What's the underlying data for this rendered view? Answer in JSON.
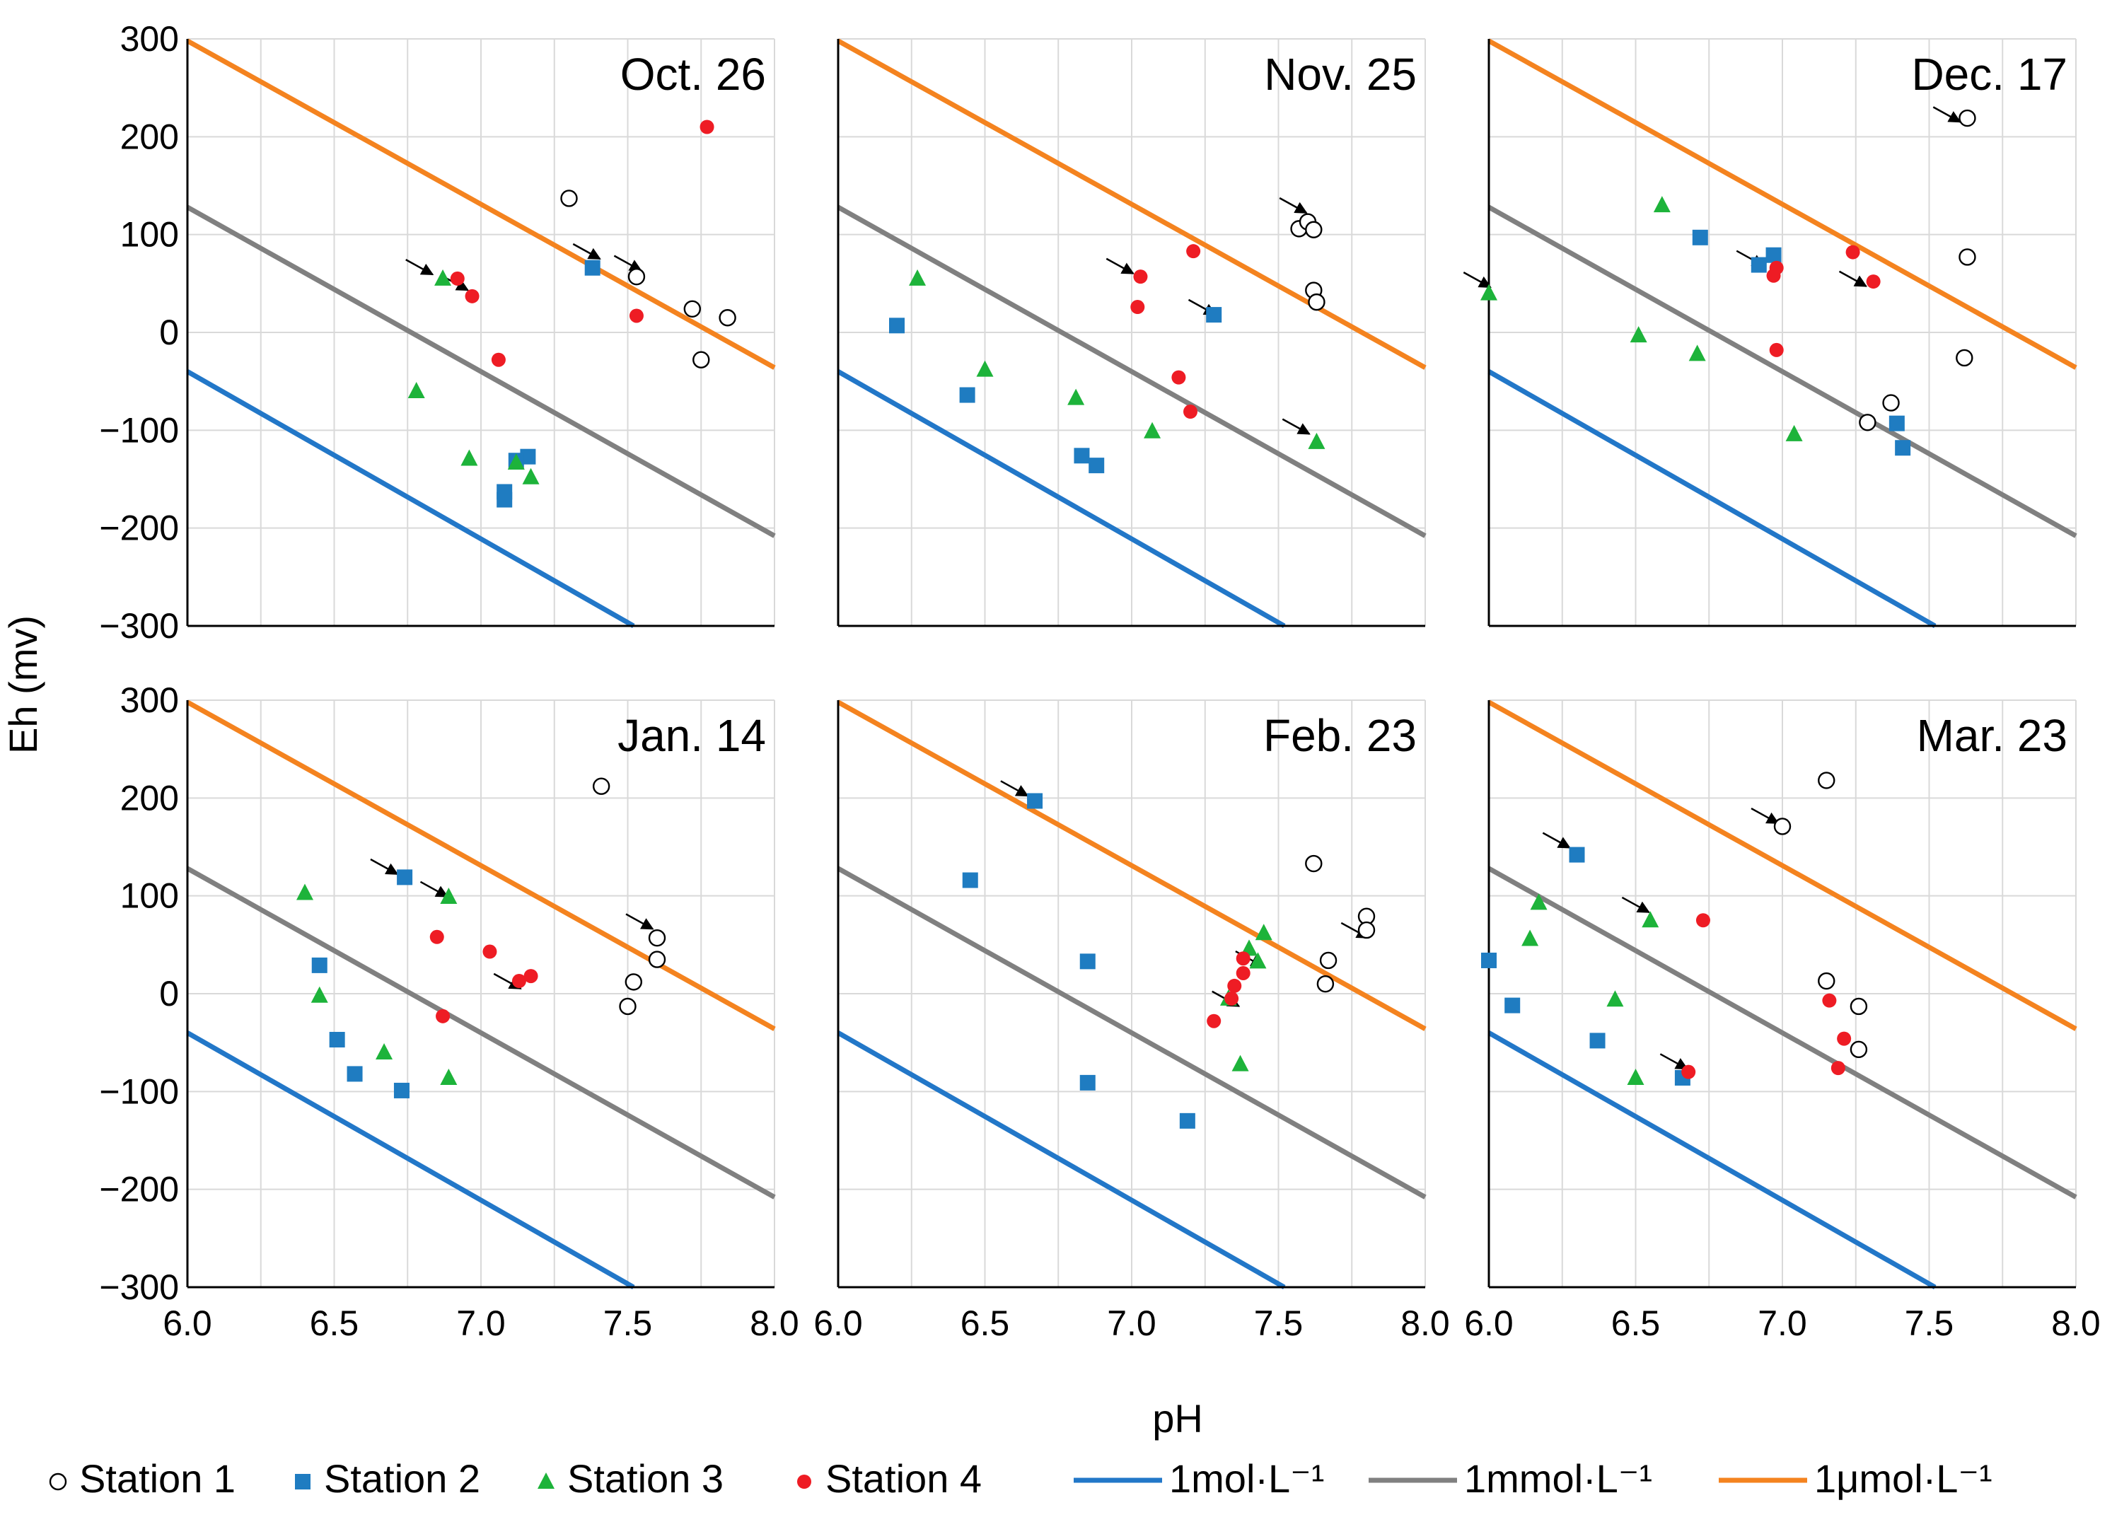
{
  "chart_data": {
    "type": "scatter",
    "title": "",
    "xlabel": "pH",
    "ylabel": "Eh (mv)",
    "xlim": [
      6.0,
      8.0
    ],
    "ylim": [
      -300,
      300
    ],
    "xticks": [
      "6.0",
      "6.5",
      "7.0",
      "7.5",
      "8.0"
    ],
    "yticks": [
      "300",
      "200",
      "100",
      "0",
      "−100",
      "−200",
      "−300"
    ],
    "grid": true,
    "colors": {
      "Station 1": "#ffffff",
      "Station 2": "#1f7cc1",
      "Station 3": "#1db33a",
      "Station 4": "#ee1c24",
      "1mol·L⁻¹": "#2277c8",
      "1mmol·L⁻¹": "#808080",
      "1μmol·L⁻¹": "#f4831f"
    },
    "legend": {
      "position": "bottom",
      "markers": [
        "Station 1",
        "Station 2",
        "Station 3",
        "Station 4"
      ],
      "lines": [
        "1mol·L⁻¹",
        "1mmol·L⁻¹",
        "1μmol·L⁻¹"
      ]
    },
    "reference_lines": [
      {
        "name": "1mol·L⁻¹",
        "x": [
          6.0,
          7.52
        ],
        "y": [
          -40,
          -300
        ]
      },
      {
        "name": "1mmol·L⁻¹",
        "x": [
          6.0,
          8.0
        ],
        "y": [
          128,
          -208
        ]
      },
      {
        "name": "1μmol·L⁻¹",
        "x": [
          6.0,
          8.0
        ],
        "y": [
          298,
          -36
        ]
      }
    ],
    "panels": [
      {
        "title": "Oct. 26",
        "series": [
          {
            "name": "Station 1",
            "x": [
              7.3,
              7.53,
              7.72,
              7.84,
              7.75
            ],
            "y": [
              137,
              57,
              24,
              15,
              -28
            ]
          },
          {
            "name": "Station 2",
            "x": [
              7.38,
              7.16,
              7.12,
              7.08,
              7.08
            ],
            "y": [
              66,
              -127,
              -131,
              -163,
              -171
            ]
          },
          {
            "name": "Station 3",
            "x": [
              6.87,
              6.78,
              6.96,
              7.12,
              7.17
            ],
            "y": [
              55,
              -60,
              -129,
              -133,
              -148
            ]
          },
          {
            "name": "Station 4",
            "x": [
              7.77,
              6.92,
              6.97,
              7.53,
              7.06
            ],
            "y": [
              210,
              55,
              37,
              17,
              -28
            ]
          }
        ],
        "arrows": [
          [
            6.85,
            57
          ],
          [
            6.97,
            41
          ],
          [
            7.42,
            73
          ],
          [
            7.56,
            61
          ]
        ]
      },
      {
        "title": "Nov. 25",
        "series": [
          {
            "name": "Station 1",
            "x": [
              7.57,
              7.6,
              7.62,
              7.62,
              7.63
            ],
            "y": [
              106,
              113,
              105,
              43,
              31
            ]
          },
          {
            "name": "Station 2",
            "x": [
              6.2,
              6.44,
              6.83,
              6.88,
              7.28
            ],
            "y": [
              7,
              -64,
              -126,
              -136,
              18
            ]
          },
          {
            "name": "Station 3",
            "x": [
              6.27,
              6.5,
              6.81,
              7.07,
              7.63
            ],
            "y": [
              55,
              -38,
              -67,
              -101,
              -112
            ]
          },
          {
            "name": "Station 4",
            "x": [
              7.21,
              7.03,
              7.02,
              7.16,
              7.2
            ],
            "y": [
              83,
              57,
              26,
              -46,
              -81
            ]
          }
        ],
        "arrows": [
          [
            7.02,
            58
          ],
          [
            7.3,
            16
          ],
          [
            7.62,
            -106
          ],
          [
            7.61,
            120
          ]
        ]
      },
      {
        "title": "Dec. 17",
        "series": [
          {
            "name": "Station 1",
            "x": [
              7.63,
              7.63,
              7.62,
              7.37,
              7.29
            ],
            "y": [
              219,
              77,
              -26,
              -72,
              -92
            ]
          },
          {
            "name": "Station 2",
            "x": [
              6.72,
              6.97,
              6.92,
              7.39,
              7.41
            ],
            "y": [
              97,
              79,
              69,
              -93,
              -118
            ]
          },
          {
            "name": "Station 3",
            "x": [
              6.59,
              6.0,
              6.51,
              6.71,
              7.04
            ],
            "y": [
              130,
              40,
              -3,
              -22,
              -104
            ]
          },
          {
            "name": "Station 4",
            "x": [
              7.24,
              6.98,
              6.97,
              7.31,
              6.98
            ],
            "y": [
              82,
              66,
              58,
              52,
              -18
            ]
          }
        ],
        "arrows": [
          [
            6.95,
            66
          ],
          [
            7.3,
            45
          ],
          [
            6.02,
            44
          ],
          [
            7.62,
            213
          ]
        ]
      },
      {
        "title": "Jan. 14",
        "series": [
          {
            "name": "Station 1",
            "x": [
              7.41,
              7.6,
              7.6,
              7.52,
              7.5
            ],
            "y": [
              212,
              57,
              35,
              12,
              -13
            ]
          },
          {
            "name": "Station 2",
            "x": [
              6.74,
              6.45,
              6.51,
              6.57,
              6.73
            ],
            "y": [
              119,
              29,
              -47,
              -82,
              -99
            ]
          },
          {
            "name": "Station 3",
            "x": [
              6.4,
              6.45,
              6.89,
              6.67,
              6.89
            ],
            "y": [
              103,
              -2,
              99,
              -60,
              -86
            ]
          },
          {
            "name": "Station 4",
            "x": [
              6.85,
              7.03,
              7.17,
              7.13,
              6.87
            ],
            "y": [
              58,
              43,
              18,
              13,
              -23
            ]
          }
        ],
        "arrows": [
          [
            6.73,
            120
          ],
          [
            6.9,
            97
          ],
          [
            7.15,
            3
          ],
          [
            7.6,
            64
          ]
        ]
      },
      {
        "title": "Feb. 23",
        "series": [
          {
            "name": "Station 1",
            "x": [
              7.62,
              7.8,
              7.8,
              7.67,
              7.66
            ],
            "y": [
              133,
              79,
              65,
              34,
              10
            ]
          },
          {
            "name": "Station 2",
            "x": [
              6.67,
              6.45,
              6.85,
              6.85,
              7.19
            ],
            "y": [
              197,
              116,
              33,
              -91,
              -130
            ]
          },
          {
            "name": "Station 3",
            "x": [
              7.45,
              7.4,
              7.43,
              7.33,
              7.37
            ],
            "y": [
              62,
              46,
              33,
              -5,
              -72
            ]
          },
          {
            "name": "Station 4",
            "x": [
              7.38,
              7.38,
              7.35,
              7.34,
              7.28
            ],
            "y": [
              36,
              21,
              8,
              -5,
              -28
            ]
          }
        ],
        "arrows": [
          [
            6.66,
            200
          ],
          [
            7.46,
            26
          ],
          [
            7.38,
            -15
          ],
          [
            7.82,
            55
          ]
        ]
      },
      {
        "title": "Mar. 23",
        "series": [
          {
            "name": "Station 1",
            "x": [
              7.15,
              7.0,
              7.15,
              7.26,
              7.26
            ],
            "y": [
              218,
              171,
              13,
              -13,
              -57
            ]
          },
          {
            "name": "Station 2",
            "x": [
              6.3,
              6.0,
              6.08,
              6.37,
              6.66
            ],
            "y": [
              142,
              34,
              -12,
              -48,
              -86
            ]
          },
          {
            "name": "Station 3",
            "x": [
              6.17,
              6.14,
              6.55,
              6.43,
              6.5
            ],
            "y": [
              93,
              56,
              75,
              -6,
              -86
            ]
          },
          {
            "name": "Station 4",
            "x": [
              6.73,
              7.16,
              7.21,
              7.19,
              6.68
            ],
            "y": [
              75,
              -7,
              -46,
              -76,
              -80
            ]
          }
        ],
        "arrows": [
          [
            6.29,
            147
          ],
          [
            6.56,
            81
          ],
          [
            7.0,
            172
          ],
          [
            6.69,
            -79
          ]
        ]
      }
    ]
  }
}
